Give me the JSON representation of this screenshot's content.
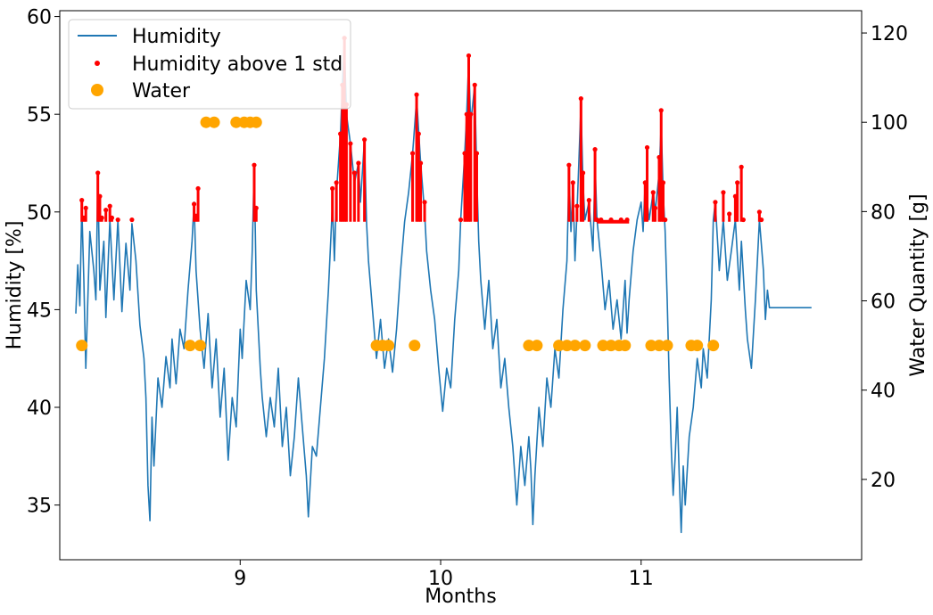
{
  "chart_data": {
    "type": "line",
    "title": "",
    "xlabel": "Months",
    "ylabel_left": "Humidity [%]",
    "ylabel_right": "Water Quantity [g]",
    "xlim": [
      8.1,
      12.1
    ],
    "ylim_left": [
      32.2,
      60.3
    ],
    "ylim_right": [
      2,
      125
    ],
    "x_ticks": [
      9,
      10,
      11
    ],
    "y_ticks_left": [
      35,
      40,
      45,
      50,
      55,
      60
    ],
    "y_ticks_right": [
      20,
      40,
      60,
      80,
      100,
      120
    ],
    "grid": false,
    "legend_position": "top-left",
    "colors": {
      "humidity": "#1f77b4",
      "above_std": "#ff0000",
      "water": "#ffa500"
    },
    "threshold": 49.5,
    "series": [
      {
        "name": "Humidity",
        "kind": "line",
        "axis": "left",
        "points": [
          [
            8.18,
            44.8
          ],
          [
            8.19,
            47.3
          ],
          [
            8.2,
            45.2
          ],
          [
            8.21,
            50.3
          ],
          [
            8.22,
            46.5
          ],
          [
            8.23,
            42.0
          ],
          [
            8.25,
            49.0
          ],
          [
            8.27,
            47.0
          ],
          [
            8.28,
            45.5
          ],
          [
            8.29,
            51.8
          ],
          [
            8.3,
            46.0
          ],
          [
            8.32,
            48.5
          ],
          [
            8.33,
            44.6
          ],
          [
            8.35,
            49.6
          ],
          [
            8.37,
            45.5
          ],
          [
            8.39,
            49.6
          ],
          [
            8.41,
            44.9
          ],
          [
            8.43,
            48.4
          ],
          [
            8.45,
            46.0
          ],
          [
            8.46,
            49.4
          ],
          [
            8.48,
            47.5
          ],
          [
            8.5,
            44.2
          ],
          [
            8.52,
            42.5
          ],
          [
            8.53,
            40.5
          ],
          [
            8.54,
            36.0
          ],
          [
            8.55,
            34.2
          ],
          [
            8.56,
            39.5
          ],
          [
            8.57,
            37.0
          ],
          [
            8.59,
            41.5
          ],
          [
            8.61,
            40.0
          ],
          [
            8.63,
            42.6
          ],
          [
            8.65,
            41.0
          ],
          [
            8.66,
            43.5
          ],
          [
            8.68,
            41.2
          ],
          [
            8.7,
            44.0
          ],
          [
            8.72,
            43.0
          ],
          [
            8.74,
            46.0
          ],
          [
            8.76,
            48.5
          ],
          [
            8.77,
            50.5
          ],
          [
            8.78,
            47.0
          ],
          [
            8.8,
            44.0
          ],
          [
            8.82,
            42.0
          ],
          [
            8.84,
            44.8
          ],
          [
            8.86,
            41.0
          ],
          [
            8.88,
            43.5
          ],
          [
            8.9,
            39.5
          ],
          [
            8.92,
            42.0
          ],
          [
            8.94,
            37.3
          ],
          [
            8.96,
            40.5
          ],
          [
            8.98,
            39.0
          ],
          [
            9.0,
            44.0
          ],
          [
            9.01,
            42.5
          ],
          [
            9.03,
            46.5
          ],
          [
            9.05,
            45.0
          ],
          [
            9.06,
            48.0
          ],
          [
            9.07,
            52.4
          ],
          [
            9.08,
            46.0
          ],
          [
            9.1,
            42.0
          ],
          [
            9.11,
            40.5
          ],
          [
            9.13,
            38.5
          ],
          [
            9.15,
            40.5
          ],
          [
            9.17,
            39.0
          ],
          [
            9.19,
            42.0
          ],
          [
            9.21,
            38.0
          ],
          [
            9.23,
            40.0
          ],
          [
            9.25,
            36.5
          ],
          [
            9.27,
            38.5
          ],
          [
            9.29,
            41.5
          ],
          [
            9.31,
            39.0
          ],
          [
            9.33,
            36.5
          ],
          [
            9.34,
            34.4
          ],
          [
            9.36,
            38.0
          ],
          [
            9.38,
            37.5
          ],
          [
            9.4,
            40.0
          ],
          [
            9.42,
            42.5
          ],
          [
            9.44,
            46.0
          ],
          [
            9.46,
            50.4
          ],
          [
            9.47,
            47.5
          ],
          [
            9.48,
            51.0
          ],
          [
            9.5,
            54.0
          ],
          [
            9.51,
            56.5
          ],
          [
            9.52,
            58.8
          ],
          [
            9.53,
            55.0
          ],
          [
            9.55,
            53.5
          ],
          [
            9.57,
            51.5
          ],
          [
            9.59,
            52.5
          ],
          [
            9.6,
            50.5
          ],
          [
            9.62,
            53.7
          ],
          [
            9.63,
            49.5
          ],
          [
            9.64,
            47.5
          ],
          [
            9.66,
            45.0
          ],
          [
            9.68,
            42.5
          ],
          [
            9.7,
            44.5
          ],
          [
            9.72,
            42.0
          ],
          [
            9.74,
            43.5
          ],
          [
            9.76,
            41.8
          ],
          [
            9.78,
            44.0
          ],
          [
            9.8,
            47.0
          ],
          [
            9.82,
            49.5
          ],
          [
            9.84,
            51.0
          ],
          [
            9.86,
            53.0
          ],
          [
            9.88,
            55.8
          ],
          [
            9.9,
            52.5
          ],
          [
            9.92,
            50.0
          ],
          [
            9.93,
            48.0
          ],
          [
            9.95,
            46.0
          ],
          [
            9.97,
            44.5
          ],
          [
            9.99,
            42.0
          ],
          [
            10.01,
            39.8
          ],
          [
            10.03,
            42.0
          ],
          [
            10.05,
            41.0
          ],
          [
            10.07,
            44.5
          ],
          [
            10.09,
            47.0
          ],
          [
            10.1,
            49.6
          ],
          [
            10.12,
            53.0
          ],
          [
            10.13,
            55.0
          ],
          [
            10.14,
            57.8
          ],
          [
            10.15,
            54.5
          ],
          [
            10.17,
            56.5
          ],
          [
            10.18,
            52.0
          ],
          [
            10.19,
            48.5
          ],
          [
            10.2,
            46.5
          ],
          [
            10.22,
            44.0
          ],
          [
            10.24,
            46.5
          ],
          [
            10.26,
            43.0
          ],
          [
            10.28,
            44.5
          ],
          [
            10.3,
            41.0
          ],
          [
            10.32,
            42.5
          ],
          [
            10.34,
            40.0
          ],
          [
            10.36,
            38.0
          ],
          [
            10.37,
            36.5
          ],
          [
            10.38,
            35.0
          ],
          [
            10.4,
            38.0
          ],
          [
            10.42,
            36.0
          ],
          [
            10.44,
            38.5
          ],
          [
            10.45,
            36.8
          ],
          [
            10.46,
            34.0
          ],
          [
            10.47,
            36.5
          ],
          [
            10.49,
            40.0
          ],
          [
            10.51,
            38.0
          ],
          [
            10.53,
            41.5
          ],
          [
            10.55,
            40.0
          ],
          [
            10.57,
            43.0
          ],
          [
            10.59,
            41.5
          ],
          [
            10.61,
            45.0
          ],
          [
            10.63,
            47.5
          ],
          [
            10.64,
            52.0
          ],
          [
            10.65,
            49.0
          ],
          [
            10.66,
            51.5
          ],
          [
            10.67,
            47.5
          ],
          [
            10.68,
            50.0
          ],
          [
            10.7,
            55.5
          ],
          [
            10.71,
            51.5
          ],
          [
            10.72,
            49.6
          ],
          [
            10.74,
            50.5
          ],
          [
            10.76,
            48.0
          ],
          [
            10.77,
            52.5
          ],
          [
            10.78,
            49.6
          ],
          [
            10.8,
            47.5
          ],
          [
            10.82,
            45.0
          ],
          [
            10.84,
            46.5
          ],
          [
            10.86,
            44.0
          ],
          [
            10.88,
            45.5
          ],
          [
            10.9,
            43.5
          ],
          [
            10.92,
            46.5
          ],
          [
            10.93,
            43.8
          ],
          [
            10.94,
            45.5
          ],
          [
            10.96,
            48.0
          ],
          [
            10.98,
            49.6
          ],
          [
            11.0,
            50.5
          ],
          [
            11.01,
            49.0
          ],
          [
            11.02,
            51.5
          ],
          [
            11.04,
            49.6
          ],
          [
            11.06,
            51.0
          ],
          [
            11.07,
            50.0
          ],
          [
            11.09,
            52.0
          ],
          [
            11.1,
            54.5
          ],
          [
            11.11,
            51.0
          ],
          [
            11.12,
            49.0
          ],
          [
            11.13,
            45.5
          ],
          [
            11.14,
            41.5
          ],
          [
            11.15,
            38.0
          ],
          [
            11.16,
            35.5
          ],
          [
            11.17,
            37.5
          ],
          [
            11.18,
            40.0
          ],
          [
            11.19,
            36.5
          ],
          [
            11.2,
            33.6
          ],
          [
            11.21,
            37.0
          ],
          [
            11.22,
            35.0
          ],
          [
            11.24,
            38.5
          ],
          [
            11.26,
            40.0
          ],
          [
            11.28,
            42.5
          ],
          [
            11.3,
            41.0
          ],
          [
            11.31,
            43.0
          ],
          [
            11.33,
            41.5
          ],
          [
            11.35,
            45.5
          ],
          [
            11.36,
            49.6
          ],
          [
            11.37,
            50.5
          ],
          [
            11.39,
            47.0
          ],
          [
            11.41,
            49.6
          ],
          [
            11.43,
            46.5
          ],
          [
            11.45,
            48.0
          ],
          [
            11.47,
            49.6
          ],
          [
            11.49,
            46.0
          ],
          [
            11.5,
            48.5
          ],
          [
            11.52,
            45.0
          ],
          [
            11.53,
            43.5
          ],
          [
            11.55,
            42.0
          ],
          [
            11.57,
            45.5
          ],
          [
            11.59,
            49.6
          ],
          [
            11.61,
            47.0
          ],
          [
            11.62,
            44.5
          ],
          [
            11.63,
            46.0
          ],
          [
            11.64,
            45.1
          ],
          [
            11.85,
            45.1
          ]
        ]
      },
      {
        "name": "Humidity above 1 std",
        "kind": "scatter",
        "axis": "left",
        "points": [
          [
            8.21,
            50.6
          ],
          [
            8.22,
            49.7
          ],
          [
            8.23,
            50.2
          ],
          [
            8.29,
            52.0
          ],
          [
            8.3,
            50.8
          ],
          [
            8.31,
            49.7
          ],
          [
            8.33,
            50.1
          ],
          [
            8.35,
            50.3
          ],
          [
            8.36,
            49.7
          ],
          [
            8.39,
            49.6
          ],
          [
            8.46,
            49.6
          ],
          [
            8.77,
            50.4
          ],
          [
            8.78,
            49.8
          ],
          [
            8.79,
            51.2
          ],
          [
            9.07,
            52.4
          ],
          [
            9.08,
            50.2
          ],
          [
            9.46,
            51.2
          ],
          [
            9.48,
            51.5
          ],
          [
            9.5,
            54.0
          ],
          [
            9.51,
            56.5
          ],
          [
            9.52,
            58.9
          ],
          [
            9.53,
            55.5
          ],
          [
            9.55,
            53.5
          ],
          [
            9.57,
            52.0
          ],
          [
            9.59,
            52.5
          ],
          [
            9.62,
            53.7
          ],
          [
            9.86,
            53.0
          ],
          [
            9.88,
            56.0
          ],
          [
            9.89,
            54.0
          ],
          [
            9.9,
            52.5
          ],
          [
            9.92,
            50.5
          ],
          [
            10.1,
            49.6
          ],
          [
            10.12,
            53.0
          ],
          [
            10.13,
            55.0
          ],
          [
            10.14,
            58.0
          ],
          [
            10.15,
            55.0
          ],
          [
            10.17,
            56.5
          ],
          [
            10.18,
            53.0
          ],
          [
            10.64,
            52.4
          ],
          [
            10.66,
            51.5
          ],
          [
            10.68,
            50.3
          ],
          [
            10.7,
            55.8
          ],
          [
            10.71,
            52.0
          ],
          [
            10.74,
            50.6
          ],
          [
            10.77,
            53.2
          ],
          [
            10.78,
            49.6
          ],
          [
            10.8,
            49.6
          ],
          [
            10.85,
            49.6
          ],
          [
            10.9,
            49.6
          ],
          [
            10.93,
            49.6
          ],
          [
            11.02,
            51.5
          ],
          [
            11.03,
            53.3
          ],
          [
            11.06,
            51.0
          ],
          [
            11.07,
            50.2
          ],
          [
            11.09,
            52.8
          ],
          [
            11.1,
            55.2
          ],
          [
            11.11,
            51.5
          ],
          [
            11.12,
            49.6
          ],
          [
            11.37,
            50.5
          ],
          [
            11.41,
            51.0
          ],
          [
            11.44,
            49.9
          ],
          [
            11.47,
            50.8
          ],
          [
            11.48,
            51.5
          ],
          [
            11.5,
            52.3
          ],
          [
            11.51,
            49.6
          ],
          [
            11.59,
            50.0
          ],
          [
            11.6,
            49.6
          ]
        ]
      },
      {
        "name": "Water",
        "kind": "scatter",
        "axis": "right",
        "points": [
          [
            8.21,
            50
          ],
          [
            8.75,
            50
          ],
          [
            8.8,
            50
          ],
          [
            8.83,
            100
          ],
          [
            8.87,
            100
          ],
          [
            8.98,
            100
          ],
          [
            9.02,
            100
          ],
          [
            9.05,
            100
          ],
          [
            9.08,
            100
          ],
          [
            9.68,
            50
          ],
          [
            9.71,
            50
          ],
          [
            9.74,
            50
          ],
          [
            9.87,
            50
          ],
          [
            10.44,
            50
          ],
          [
            10.48,
            50
          ],
          [
            10.59,
            50
          ],
          [
            10.63,
            50
          ],
          [
            10.67,
            50
          ],
          [
            10.72,
            50
          ],
          [
            10.81,
            50
          ],
          [
            10.85,
            50
          ],
          [
            10.89,
            50
          ],
          [
            10.92,
            50
          ],
          [
            11.05,
            50
          ],
          [
            11.09,
            50
          ],
          [
            11.13,
            50
          ],
          [
            11.25,
            50
          ],
          [
            11.28,
            50
          ],
          [
            11.36,
            50
          ]
        ]
      }
    ]
  }
}
